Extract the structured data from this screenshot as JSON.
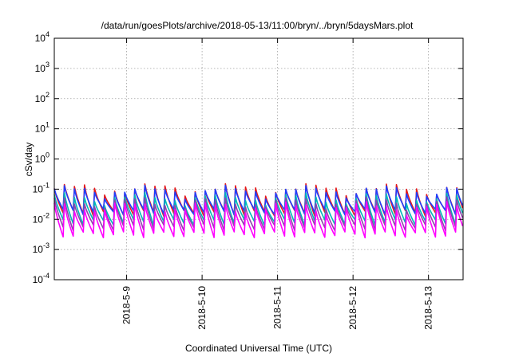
{
  "chart_data": {
    "type": "line",
    "title": "/data/run/goesPlots/archive/2018-05-13/11:00/bryn/../bryn/5daysMars.plot",
    "xlabel": "Coordinated Universal Time (UTC)",
    "ylabel": "cSv/day",
    "y_scale": "log",
    "ylim": [
      0.0001,
      10000
    ],
    "y_ticks": [
      {
        "base": "10",
        "exp": "-4",
        "value": 0.0001
      },
      {
        "base": "10",
        "exp": "-3",
        "value": 0.001
      },
      {
        "base": "10",
        "exp": "-2",
        "value": 0.01
      },
      {
        "base": "10",
        "exp": "-1",
        "value": 0.1
      },
      {
        "base": "10",
        "exp": "0",
        "value": 1
      },
      {
        "base": "10",
        "exp": "1",
        "value": 10
      },
      {
        "base": "10",
        "exp": "2",
        "value": 100
      },
      {
        "base": "10",
        "exp": "3",
        "value": 1000
      },
      {
        "base": "10",
        "exp": "4",
        "value": 10000
      }
    ],
    "xlim": [
      "2018-05-08T01:00",
      "2018-05-13T11:00"
    ],
    "x_ticks": [
      {
        "label": "2018-5-9",
        "value": "2018-05-09T00:00"
      },
      {
        "label": "2018-5-10",
        "value": "2018-05-10T00:00"
      },
      {
        "label": "2018-5-11",
        "value": "2018-05-11T00:00"
      },
      {
        "label": "2018-5-12",
        "value": "2018-05-12T00:00"
      },
      {
        "label": "2018-5-13",
        "value": "2018-05-13T00:00"
      }
    ],
    "grid": true,
    "legend": "none",
    "period_hours": 3.2,
    "series": [
      {
        "color": "#e41a1c",
        "peak": 0.14,
        "trough": 0.018
      },
      {
        "color": "#1f3fff",
        "peak": 0.12,
        "trough": 0.02
      },
      {
        "color": "#00b8b8",
        "peak": 0.07,
        "trough": 0.009
      },
      {
        "color": "#8e44ad",
        "peak": 0.05,
        "trough": 0.006
      },
      {
        "color": "#ff00ff",
        "peak": 0.035,
        "trough": 0.0035
      }
    ]
  }
}
